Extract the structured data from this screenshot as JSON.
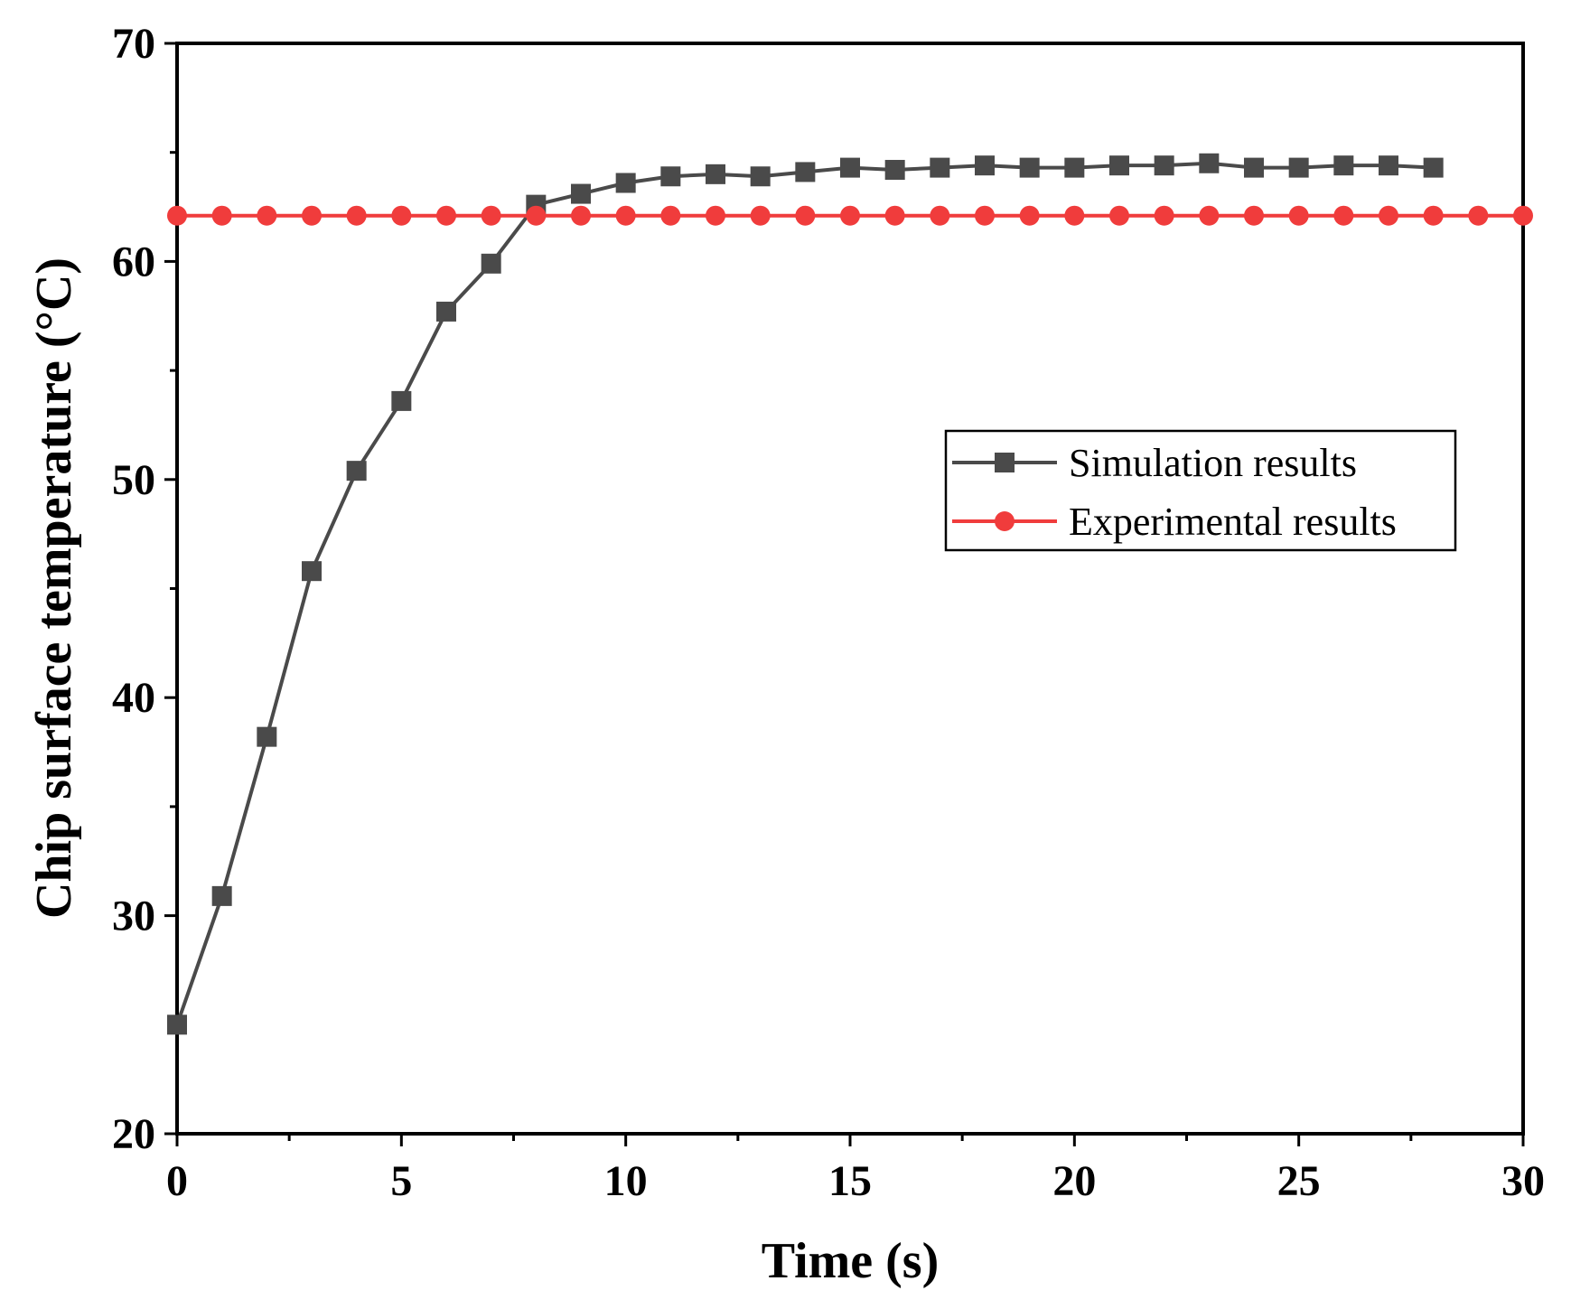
{
  "chart_data": {
    "type": "line",
    "title": "",
    "xlabel": "Time (s)",
    "ylabel": "Chip surface temperature (°C)",
    "xlim": [
      0,
      30
    ],
    "ylim": [
      20,
      70
    ],
    "xticks": [
      0,
      5,
      10,
      15,
      20,
      25,
      30
    ],
    "yticks": [
      20,
      30,
      40,
      50,
      60,
      70
    ],
    "grid": false,
    "legend_position": "center-right",
    "series": [
      {
        "name": "Simulation results",
        "color": "#4a4a4a",
        "marker": "square",
        "x": [
          0,
          1,
          2,
          3,
          4,
          5,
          6,
          7,
          8,
          9,
          10,
          11,
          12,
          13,
          14,
          15,
          16,
          17,
          18,
          19,
          20,
          21,
          22,
          23,
          24,
          25,
          26,
          27,
          28
        ],
        "values": [
          25.0,
          30.9,
          38.2,
          45.8,
          50.4,
          53.6,
          57.7,
          59.9,
          62.6,
          63.1,
          63.6,
          63.9,
          64.0,
          63.9,
          64.1,
          64.3,
          64.2,
          64.3,
          64.4,
          64.3,
          64.3,
          64.4,
          64.4,
          64.5,
          64.3,
          64.3,
          64.4,
          64.4,
          64.3
        ]
      },
      {
        "name": "Experimental results",
        "color": "#f03c3c",
        "marker": "circle",
        "x": [
          0,
          1,
          2,
          3,
          4,
          5,
          6,
          7,
          8,
          9,
          10,
          11,
          12,
          13,
          14,
          15,
          16,
          17,
          18,
          19,
          20,
          21,
          22,
          23,
          24,
          25,
          26,
          27,
          28,
          29,
          30
        ],
        "values": [
          62.1,
          62.1,
          62.1,
          62.1,
          62.1,
          62.1,
          62.1,
          62.1,
          62.1,
          62.1,
          62.1,
          62.1,
          62.1,
          62.1,
          62.1,
          62.1,
          62.1,
          62.1,
          62.1,
          62.1,
          62.1,
          62.1,
          62.1,
          62.1,
          62.1,
          62.1,
          62.1,
          62.1,
          62.1,
          62.1,
          62.1
        ]
      }
    ]
  }
}
